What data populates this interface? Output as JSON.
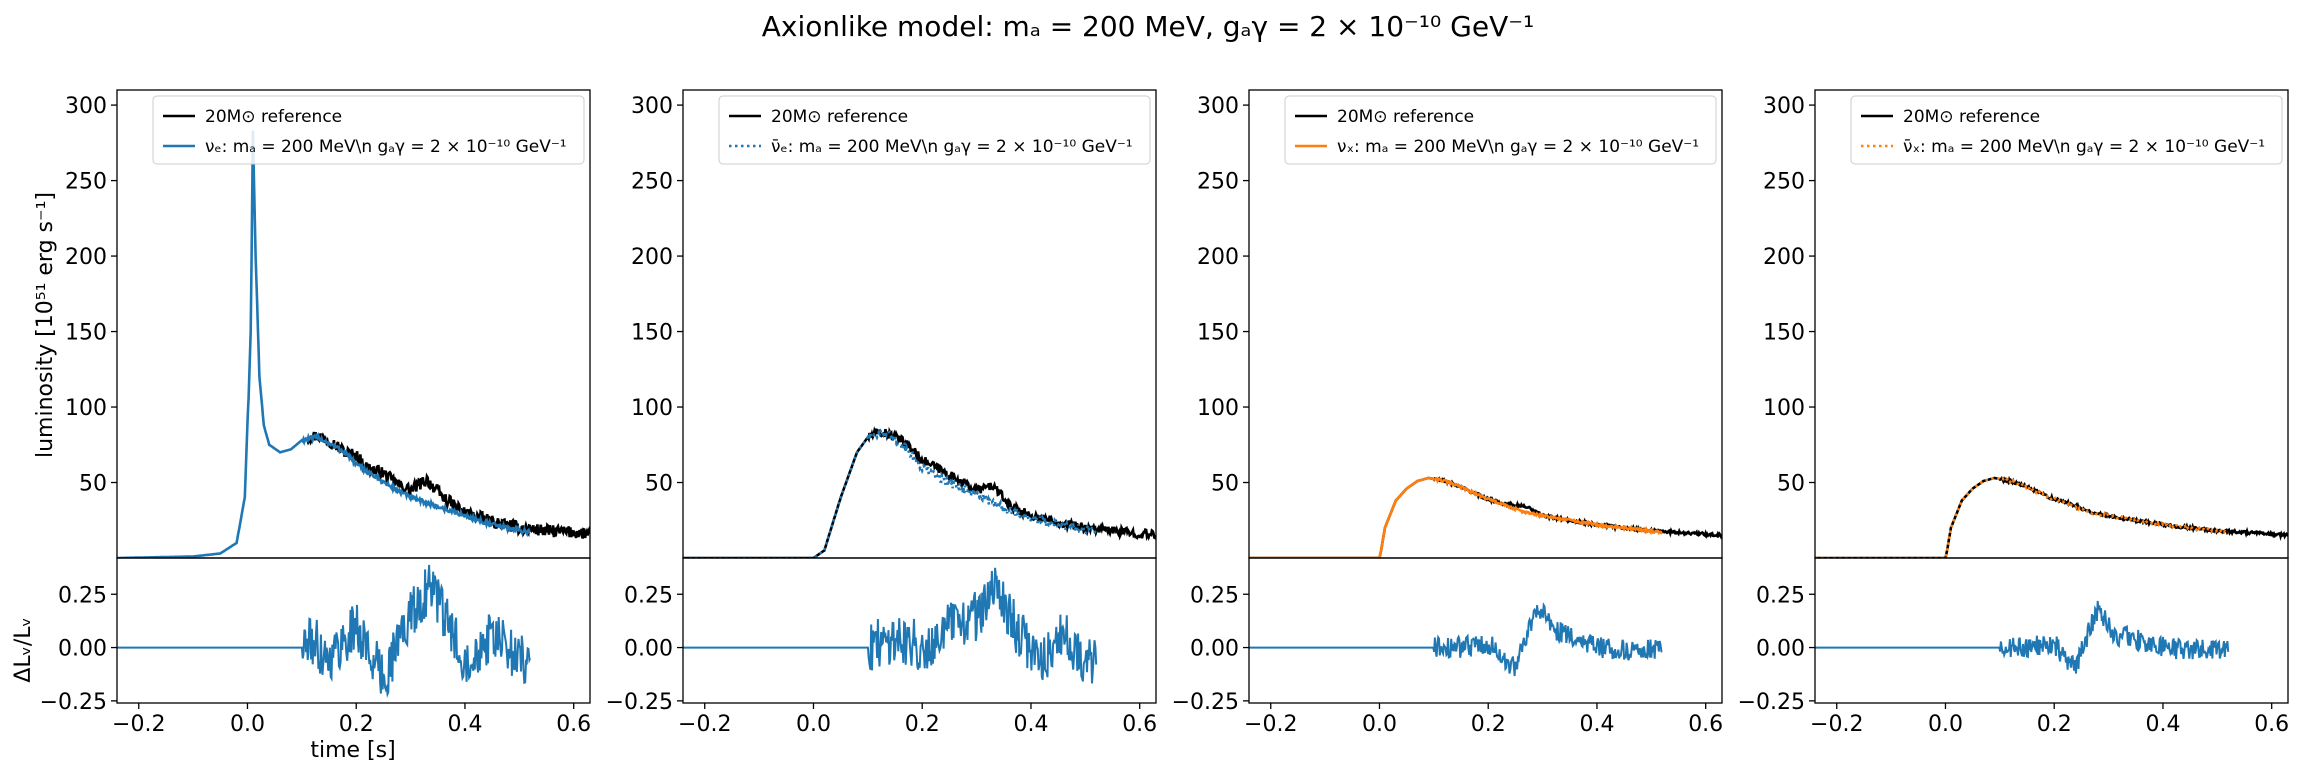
{
  "figure": {
    "suptitle": "Axionlike model: mₐ = 200 MeV, gₐγ = 2 × 10⁻¹⁰ GeV⁻¹",
    "ylabel_top": "luminosity [10⁵¹ erg s⁻¹]",
    "ylabel_bottom": "ΔLᵥ/Lᵥ",
    "xlabel": "time [s]"
  },
  "colors": {
    "reference": "#000000",
    "nu_e": "#1f77b4",
    "nubar_e": "#1f77b4",
    "nu_x": "#ff7f0e",
    "nubar_x": "#ff7f0e",
    "residual": "#1f77b4"
  },
  "chart_data": [
    {
      "type": "line",
      "panel": "nu_e",
      "xlim": [
        -0.24,
        0.63
      ],
      "ylim_top": [
        0,
        310
      ],
      "ylim_bottom": [
        -0.26,
        0.42
      ],
      "xticks": [
        "−0.2",
        "0.0",
        "0.2",
        "0.4",
        "0.6"
      ],
      "yticks_top": [
        "50",
        "100",
        "150",
        "200",
        "250",
        "300"
      ],
      "yticks_bottom": [
        "−0.25",
        "0.00",
        "0.25"
      ],
      "legend": {
        "location": "top-right",
        "entries": [
          {
            "label": "20M⊙ reference",
            "style": "solid",
            "color": "#000000"
          },
          {
            "label": "νₑ: mₐ = 200 MeV\\n     gₐγ = 2 × 10⁻¹⁰ GeV⁻¹",
            "style": "solid",
            "color": "#1f77b4"
          }
        ]
      },
      "series": [
        {
          "role": "reference",
          "style": "solid",
          "color": "#000000",
          "x": [
            0.11,
            0.13,
            0.15,
            0.18,
            0.2,
            0.22,
            0.25,
            0.28,
            0.3,
            0.33,
            0.36,
            0.4,
            0.45,
            0.5,
            0.55,
            0.6,
            0.63
          ],
          "y": [
            80,
            81,
            78,
            70,
            68,
            60,
            56,
            48,
            45,
            52,
            40,
            30,
            24,
            20,
            18,
            17,
            16
          ],
          "noise": 4
        },
        {
          "role": "model",
          "style": "solid",
          "color": "#1f77b4",
          "x": [
            -0.24,
            -0.1,
            -0.05,
            -0.02,
            -0.005,
            0.0,
            0.002,
            0.006,
            0.01,
            0.015,
            0.022,
            0.03,
            0.04,
            0.06,
            0.08,
            0.1,
            0.13,
            0.15,
            0.18,
            0.2,
            0.23,
            0.26,
            0.3,
            0.35,
            0.4,
            0.45,
            0.52
          ],
          "y": [
            0,
            1,
            3,
            10,
            40,
            90,
            106,
            150,
            283,
            200,
            120,
            88,
            75,
            70,
            72,
            78,
            80,
            76,
            70,
            62,
            55,
            48,
            40,
            34,
            28,
            22,
            17
          ],
          "noise": 1.5
        },
        {
          "role": "residual",
          "style": "solid",
          "color": "#1f77b4",
          "x": [
            -0.24,
            0.0,
            0.1,
            0.12,
            0.15,
            0.2,
            0.25,
            0.28,
            0.3,
            0.34,
            0.36,
            0.4,
            0.45,
            0.5,
            0.52
          ],
          "y": [
            0,
            0,
            0,
            0.03,
            -0.05,
            0.1,
            -0.15,
            0.05,
            0.15,
            0.3,
            0.15,
            -0.05,
            0.05,
            -0.05,
            -0.05
          ],
          "noise": 0.12
        }
      ]
    },
    {
      "type": "line",
      "panel": "nubar_e",
      "xlim": [
        -0.24,
        0.63
      ],
      "ylim_top": [
        0,
        310
      ],
      "ylim_bottom": [
        -0.26,
        0.42
      ],
      "xticks": [
        "−0.2",
        "0.0",
        "0.2",
        "0.4",
        "0.6"
      ],
      "yticks_top": [
        "50",
        "100",
        "150",
        "200",
        "250",
        "300"
      ],
      "yticks_bottom": [
        "−0.25",
        "0.00",
        "0.25"
      ],
      "legend": {
        "location": "top-right",
        "entries": [
          {
            "label": "20M⊙ reference",
            "style": "solid",
            "color": "#000000"
          },
          {
            "label": "ν̄ₑ: mₐ = 200 MeV\\n     gₐγ = 2 × 10⁻¹⁰ GeV⁻¹",
            "style": "dotted",
            "color": "#1f77b4"
          }
        ]
      },
      "series": [
        {
          "role": "reference",
          "style": "solid",
          "color": "#000000",
          "x": [
            -0.24,
            0.0,
            0.02,
            0.05,
            0.08,
            0.1,
            0.12,
            0.14,
            0.17,
            0.2,
            0.25,
            0.3,
            0.33,
            0.36,
            0.4,
            0.45,
            0.5,
            0.55,
            0.63
          ],
          "y": [
            0,
            0,
            5,
            40,
            70,
            80,
            83,
            82,
            76,
            65,
            55,
            45,
            48,
            35,
            28,
            24,
            20,
            18,
            15
          ],
          "noise": 3
        },
        {
          "role": "model",
          "style": "dotted",
          "color": "#1f77b4",
          "x": [
            -0.24,
            0.0,
            0.02,
            0.05,
            0.08,
            0.1,
            0.12,
            0.14,
            0.17,
            0.2,
            0.25,
            0.3,
            0.35,
            0.4,
            0.45,
            0.52
          ],
          "y": [
            0,
            0,
            5,
            40,
            70,
            80,
            83,
            81,
            73,
            60,
            50,
            42,
            33,
            26,
            22,
            18
          ],
          "noise": 3
        },
        {
          "role": "residual",
          "style": "solid",
          "color": "#1f77b4",
          "x": [
            -0.24,
            0.0,
            0.1,
            0.12,
            0.15,
            0.2,
            0.25,
            0.3,
            0.34,
            0.38,
            0.42,
            0.46,
            0.5,
            0.52
          ],
          "y": [
            0,
            0,
            0,
            0.02,
            0.05,
            0.0,
            0.1,
            0.15,
            0.28,
            0.05,
            -0.05,
            0.05,
            -0.05,
            -0.08
          ],
          "noise": 0.12
        }
      ]
    },
    {
      "type": "line",
      "panel": "nu_x",
      "xlim": [
        -0.24,
        0.63
      ],
      "ylim_top": [
        0,
        310
      ],
      "ylim_bottom": [
        -0.26,
        0.42
      ],
      "xticks": [
        "−0.2",
        "0.0",
        "0.2",
        "0.4",
        "0.6"
      ],
      "yticks_top": [
        "50",
        "100",
        "150",
        "200",
        "250",
        "300"
      ],
      "yticks_bottom": [
        "−0.25",
        "0.00",
        "0.25"
      ],
      "legend": {
        "location": "top-right",
        "entries": [
          {
            "label": "20M⊙ reference",
            "style": "solid",
            "color": "#000000"
          },
          {
            "label": "νₓ: mₐ = 200 MeV\\n     gₐγ = 2 × 10⁻¹⁰ GeV⁻¹",
            "style": "solid",
            "color": "#ff7f0e"
          }
        ]
      },
      "series": [
        {
          "role": "reference",
          "style": "solid",
          "color": "#000000",
          "x": [
            -0.24,
            0.0,
            0.003,
            0.01,
            0.03,
            0.05,
            0.07,
            0.09,
            0.12,
            0.15,
            0.18,
            0.2,
            0.23,
            0.27,
            0.3,
            0.35,
            0.4,
            0.45,
            0.5,
            0.55,
            0.63
          ],
          "y": [
            0,
            0,
            5,
            20,
            38,
            46,
            51,
            53,
            51,
            47,
            42,
            39,
            36,
            34,
            28,
            25,
            22,
            20,
            18,
            17,
            15
          ],
          "noise": 1
        },
        {
          "role": "model",
          "style": "solid",
          "color": "#ff7f0e",
          "x": [
            -0.24,
            0.0,
            0.003,
            0.01,
            0.03,
            0.05,
            0.07,
            0.09,
            0.12,
            0.15,
            0.18,
            0.2,
            0.23,
            0.27,
            0.3,
            0.35,
            0.4,
            0.45,
            0.52
          ],
          "y": [
            0,
            0,
            5,
            20,
            38,
            46,
            51,
            53,
            51,
            47,
            42,
            39,
            35,
            30,
            28,
            25,
            22,
            20,
            17
          ],
          "noise": 0.8
        },
        {
          "role": "residual",
          "style": "solid",
          "color": "#1f77b4",
          "x": [
            -0.24,
            0.0,
            0.15,
            0.2,
            0.23,
            0.25,
            0.27,
            0.29,
            0.32,
            0.36,
            0.4,
            0.45,
            0.5,
            0.52
          ],
          "y": [
            0,
            0,
            0,
            0.02,
            -0.05,
            -0.1,
            0.05,
            0.2,
            0.08,
            0.05,
            0.0,
            -0.01,
            -0.01,
            -0.02
          ],
          "noise": 0.05
        }
      ]
    },
    {
      "type": "line",
      "panel": "nubar_x",
      "xlim": [
        -0.24,
        0.63
      ],
      "ylim_top": [
        0,
        310
      ],
      "ylim_bottom": [
        -0.26,
        0.42
      ],
      "xticks": [
        "−0.2",
        "0.0",
        "0.2",
        "0.4",
        "0.6"
      ],
      "yticks_top": [
        "50",
        "100",
        "150",
        "200",
        "250",
        "300"
      ],
      "yticks_bottom": [
        "−0.25",
        "0.00",
        "0.25"
      ],
      "legend": {
        "location": "top-right",
        "entries": [
          {
            "label": "20M⊙ reference",
            "style": "solid",
            "color": "#000000"
          },
          {
            "label": "ν̄ₓ: mₐ = 200 MeV\\n     gₐγ = 2 × 10⁻¹⁰ GeV⁻¹",
            "style": "dotted",
            "color": "#ff7f0e"
          }
        ]
      },
      "series": [
        {
          "role": "reference",
          "style": "solid",
          "color": "#000000",
          "x": [
            -0.24,
            0.0,
            0.003,
            0.01,
            0.03,
            0.05,
            0.07,
            0.09,
            0.12,
            0.15,
            0.18,
            0.2,
            0.23,
            0.27,
            0.3,
            0.35,
            0.4,
            0.45,
            0.5,
            0.55,
            0.63
          ],
          "y": [
            0,
            0,
            5,
            20,
            38,
            46,
            51,
            53,
            51,
            47,
            42,
            39,
            36,
            30,
            28,
            25,
            22,
            20,
            18,
            17,
            15
          ],
          "noise": 1
        },
        {
          "role": "model",
          "style": "dotted",
          "color": "#ff7f0e",
          "x": [
            -0.24,
            0.0,
            0.003,
            0.01,
            0.03,
            0.05,
            0.07,
            0.09,
            0.12,
            0.15,
            0.18,
            0.2,
            0.23,
            0.27,
            0.3,
            0.35,
            0.4,
            0.45,
            0.52
          ],
          "y": [
            0,
            0,
            5,
            20,
            38,
            46,
            51,
            53,
            51,
            47,
            42,
            39,
            35,
            30,
            28,
            25,
            22,
            20,
            17
          ],
          "noise": 0.8
        },
        {
          "role": "residual",
          "style": "solid",
          "color": "#1f77b4",
          "x": [
            -0.24,
            0.0,
            0.15,
            0.2,
            0.22,
            0.24,
            0.26,
            0.28,
            0.31,
            0.35,
            0.4,
            0.45,
            0.5,
            0.52
          ],
          "y": [
            0,
            0,
            0,
            0.02,
            -0.05,
            -0.1,
            0.05,
            0.18,
            0.06,
            0.04,
            0.0,
            -0.01,
            -0.01,
            -0.02
          ],
          "noise": 0.05
        }
      ]
    }
  ]
}
